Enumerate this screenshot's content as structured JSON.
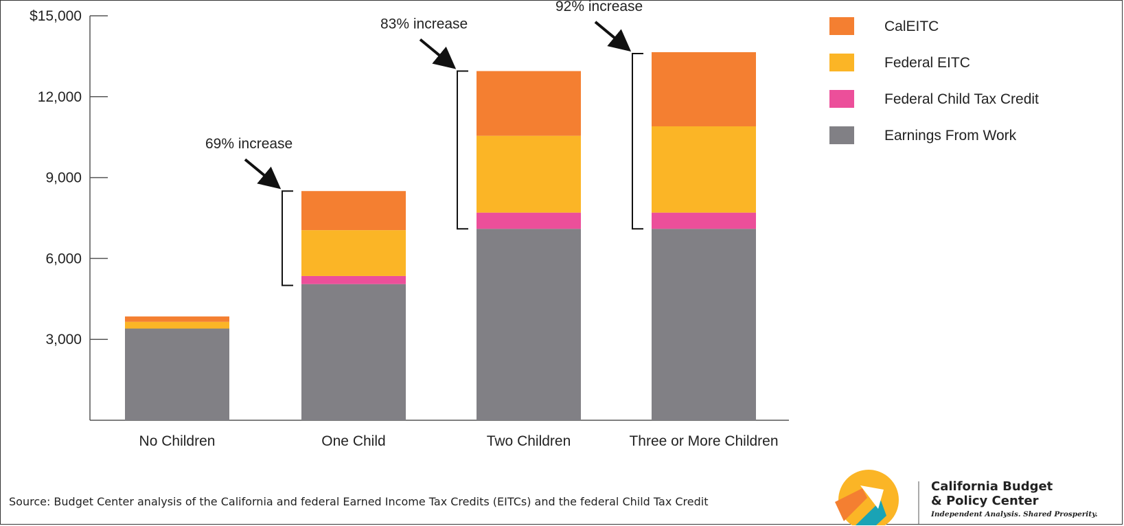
{
  "chart_data": {
    "type": "bar",
    "stacked": true,
    "categories": [
      "No Children",
      "One Child",
      "Two Children",
      "Three or More Children"
    ],
    "series": [
      {
        "name": "Earnings From Work",
        "values": [
          3400,
          5050,
          7100,
          7100
        ],
        "color": "#818085"
      },
      {
        "name": "Federal Child Tax Credit",
        "values": [
          0,
          300,
          600,
          600
        ],
        "color": "#EC4F9A"
      },
      {
        "name": "Federal EITC",
        "values": [
          250,
          1700,
          2850,
          3200
        ],
        "color": "#FBB526"
      },
      {
        "name": "CalEITC",
        "values": [
          200,
          1450,
          2400,
          2750
        ],
        "color": "#F47F31"
      }
    ],
    "legend_order": [
      "CalEITC",
      "Federal EITC",
      "Federal Child Tax Credit",
      "Earnings From Work"
    ],
    "legend_position": "top-right",
    "ylim": [
      0,
      15000
    ],
    "yticks": [
      3000,
      6000,
      9000,
      12000,
      15000
    ],
    "ytick_labels": [
      "3,000",
      "6,000",
      "9,000",
      "12,000",
      "$15,000"
    ],
    "grid": false,
    "annotations": [
      {
        "text": "69% increase",
        "category": "One Child",
        "bracket_from": 5000,
        "bracket_to": 8500
      },
      {
        "text": "83% increase",
        "category": "Two Children",
        "bracket_from": 7100,
        "bracket_to": 12950
      },
      {
        "text": "92% increase",
        "category": "Three or More Children",
        "bracket_from": 7100,
        "bracket_to": 13600
      }
    ]
  },
  "source_text": "Source: Budget Center analysis of the California and federal Earned Income Tax Credits (EITCs) and the federal Child Tax Credit",
  "logo": {
    "line1": "California Budget",
    "line2": "& Policy Center",
    "tagline": "Independent Analysis. Shared Prosperity.",
    "colors": {
      "yellow": "#FBB526",
      "orange": "#F47F31",
      "teal": "#1AA3B5"
    }
  }
}
